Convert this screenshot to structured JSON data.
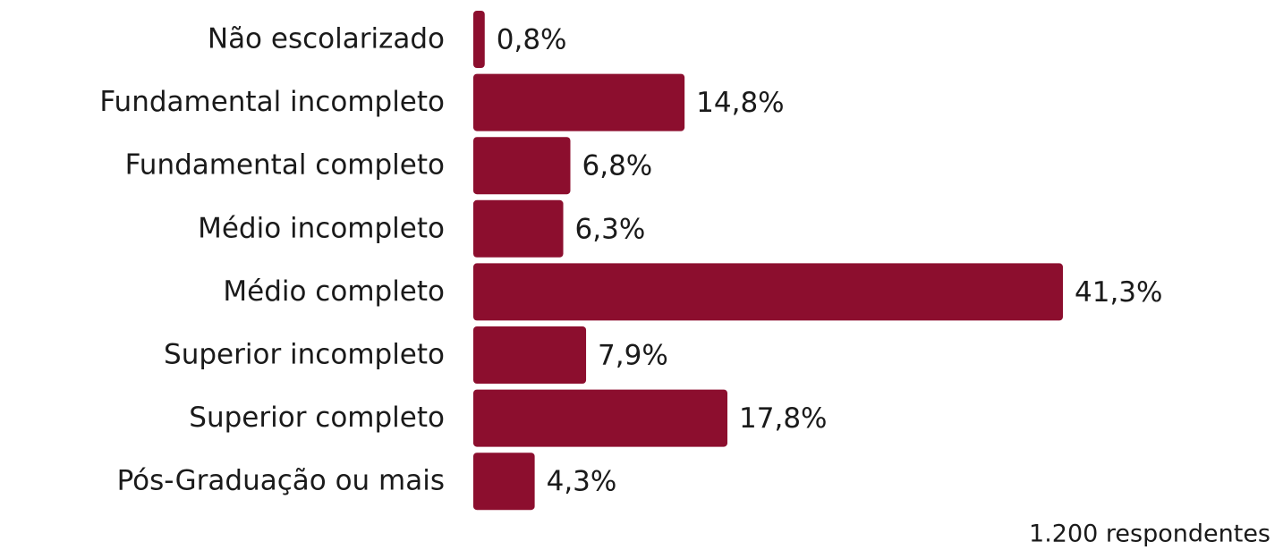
{
  "chart_data": {
    "type": "bar",
    "orientation": "horizontal",
    "categories": [
      "Não escolarizado",
      "Fundamental incompleto",
      "Fundamental completo",
      "Médio incompleto",
      "Médio completo",
      "Superior incompleto",
      "Superior completo",
      "Pós-Graduação ou mais"
    ],
    "values": [
      0.8,
      14.8,
      6.8,
      6.3,
      41.3,
      7.9,
      17.8,
      4.3
    ],
    "value_labels": [
      "0,8%",
      "14,8%",
      "6,8%",
      "6,3%",
      "41,3%",
      "7,9%",
      "17,8%",
      "4,3%"
    ],
    "color": "#8c0e2e",
    "note": "1.200 respondentes"
  }
}
